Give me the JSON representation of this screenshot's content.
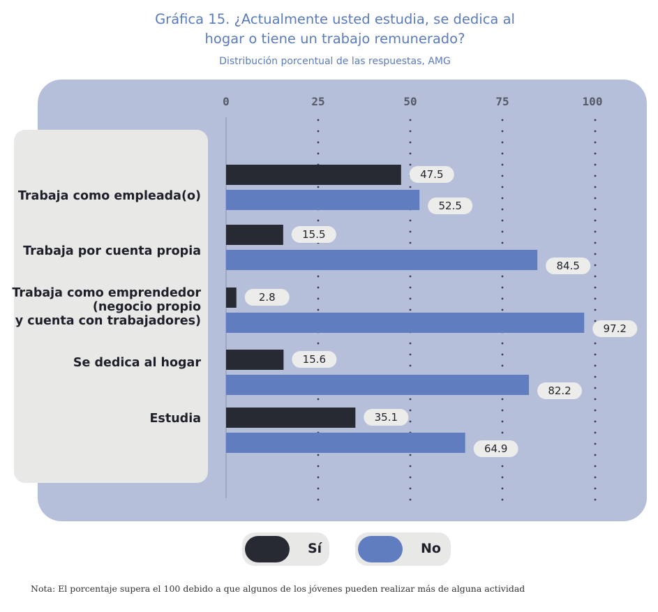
{
  "header": {
    "title_line1": "Gráfica 15. ¿Actualmente usted estudia, se dedica al",
    "title_line2": "hogar o tiene un trabajo remunerado?",
    "subtitle": "Distribución porcentual de las respuestas, AMG"
  },
  "legend": {
    "si_label": "Sí",
    "no_label": "No"
  },
  "note": "Nota: El porcentaje supera el 100 debido a que algunos de los jóvenes pueden realizar más de alguna actividad",
  "colors": {
    "si": "#282a33",
    "no": "#5f7dbf",
    "panel": "#b5bfd9",
    "label_bg": "#e8e8e7",
    "title": "#5a7bbd"
  },
  "chart_data": {
    "type": "bar",
    "orientation": "horizontal",
    "title": "Gráfica 15. ¿Actualmente usted estudia, se dedica al hogar o tiene un trabajo remunerado?",
    "subtitle": "Distribución porcentual de las respuestas, AMG",
    "categories": [
      [
        "Trabaja como empleada(o)"
      ],
      [
        "Trabaja por cuenta propia"
      ],
      [
        "Trabaja como emprendedor",
        "(negocio propio",
        "y cuenta con trabajadores)"
      ],
      [
        "Se dedica al hogar"
      ],
      [
        "Estudia"
      ]
    ],
    "series": [
      {
        "name": "Sí",
        "values": [
          47.5,
          15.5,
          2.8,
          15.6,
          35.1
        ]
      },
      {
        "name": "No",
        "values": [
          52.5,
          84.5,
          97.2,
          82.2,
          64.9
        ]
      }
    ],
    "xlim": [
      0,
      100
    ],
    "xticks": [
      0,
      25,
      50,
      75,
      100
    ],
    "grid": "dotted vertical",
    "legend_position": "bottom"
  }
}
